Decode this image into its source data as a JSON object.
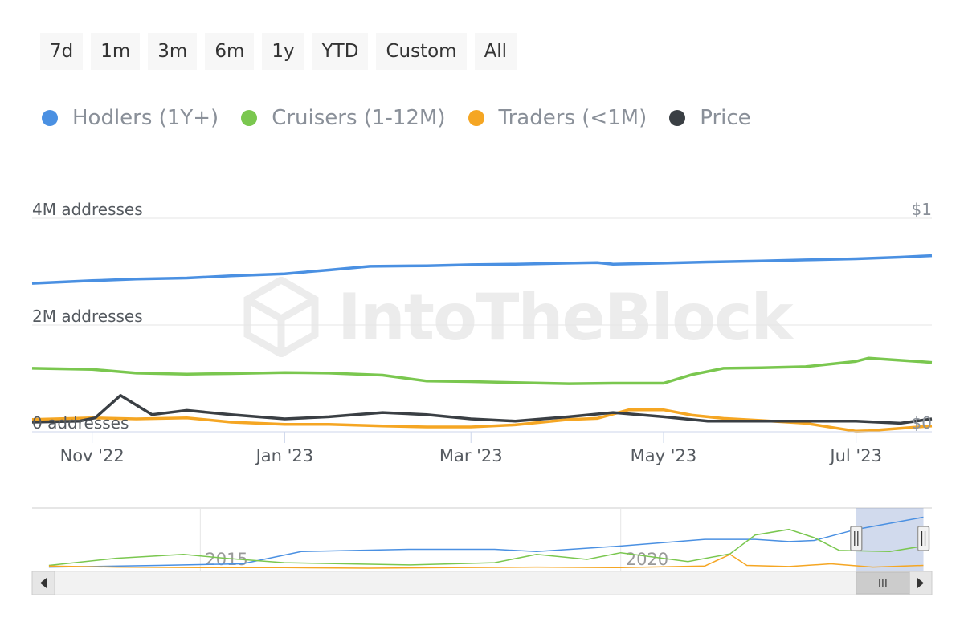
{
  "range_buttons": [
    "7d",
    "1m",
    "3m",
    "6m",
    "1y",
    "YTD",
    "Custom",
    "All"
  ],
  "legend": [
    {
      "label": "Hodlers (1Y+)",
      "color": "#4a90e2"
    },
    {
      "label": "Cruisers (1-12M)",
      "color": "#7ac74f"
    },
    {
      "label": "Traders (<1M)",
      "color": "#f5a623"
    },
    {
      "label": "Price",
      "color": "#3a3f44"
    }
  ],
  "watermark": "IntoTheBlock",
  "chart_data": {
    "type": "line",
    "y_axis_left": {
      "ticks": [
        "0 addresses",
        "2M addresses",
        "4M addresses"
      ],
      "range": [
        0,
        4000000
      ]
    },
    "y_axis_right": {
      "ticks": [
        "$0",
        "$1"
      ],
      "range": [
        0,
        1
      ]
    },
    "x_ticks": [
      "Nov '22",
      "Jan '23",
      "Mar '23",
      "May '23",
      "Jul '23"
    ],
    "x_range": [
      "2022-10-13",
      "2023-07-25"
    ],
    "series": [
      {
        "name": "Hodlers (1Y+)",
        "axis": "left",
        "color": "#4a90e2",
        "x": [
          "2022-10-13",
          "2022-11-01",
          "2022-11-15",
          "2022-12-01",
          "2022-12-15",
          "2023-01-01",
          "2023-01-15",
          "2023-01-28",
          "2023-02-15",
          "2023-03-01",
          "2023-03-15",
          "2023-04-01",
          "2023-04-10",
          "2023-04-15",
          "2023-05-01",
          "2023-05-15",
          "2023-06-01",
          "2023-06-15",
          "2023-07-01",
          "2023-07-15",
          "2023-07-25"
        ],
        "values": [
          2780000,
          2830000,
          2860000,
          2880000,
          2920000,
          2960000,
          3030000,
          3100000,
          3110000,
          3130000,
          3140000,
          3160000,
          3170000,
          3140000,
          3160000,
          3180000,
          3200000,
          3220000,
          3240000,
          3270000,
          3300000
        ]
      },
      {
        "name": "Cruisers (1-12M)",
        "axis": "left",
        "color": "#7ac74f",
        "x": [
          "2022-10-13",
          "2022-11-01",
          "2022-11-15",
          "2022-12-01",
          "2022-12-15",
          "2023-01-01",
          "2023-01-15",
          "2023-02-01",
          "2023-02-15",
          "2023-03-01",
          "2023-03-15",
          "2023-04-01",
          "2023-04-15",
          "2023-05-01",
          "2023-05-10",
          "2023-05-20",
          "2023-06-01",
          "2023-06-15",
          "2023-07-01",
          "2023-07-05",
          "2023-07-25"
        ],
        "values": [
          1190000,
          1170000,
          1100000,
          1080000,
          1090000,
          1110000,
          1100000,
          1060000,
          950000,
          940000,
          920000,
          900000,
          910000,
          910000,
          1070000,
          1190000,
          1200000,
          1220000,
          1320000,
          1380000,
          1300000
        ]
      },
      {
        "name": "Traders (<1M)",
        "axis": "left",
        "color": "#f5a623",
        "x": [
          "2022-10-13",
          "2022-11-01",
          "2022-11-15",
          "2022-12-01",
          "2022-12-15",
          "2023-01-01",
          "2023-01-15",
          "2023-02-01",
          "2023-02-15",
          "2023-03-01",
          "2023-03-15",
          "2023-04-01",
          "2023-04-10",
          "2023-04-20",
          "2023-05-01",
          "2023-05-10",
          "2023-05-20",
          "2023-06-01",
          "2023-06-15",
          "2023-07-01",
          "2023-07-05",
          "2023-07-25"
        ],
        "values": [
          230000,
          260000,
          240000,
          260000,
          180000,
          140000,
          140000,
          110000,
          90000,
          90000,
          130000,
          230000,
          250000,
          410000,
          410000,
          310000,
          250000,
          210000,
          160000,
          10000,
          20000,
          110000
        ]
      },
      {
        "name": "Price",
        "axis": "right",
        "color": "#3a3f44",
        "x": [
          "2022-10-13",
          "2022-10-28",
          "2022-11-02",
          "2022-11-10",
          "2022-11-20",
          "2022-12-01",
          "2022-12-15",
          "2023-01-01",
          "2023-01-15",
          "2023-02-01",
          "2023-02-15",
          "2023-03-01",
          "2023-03-15",
          "2023-04-01",
          "2023-04-15",
          "2023-05-01",
          "2023-05-15",
          "2023-06-01",
          "2023-06-15",
          "2023-07-01",
          "2023-07-15",
          "2023-07-25"
        ],
        "values": [
          0.045,
          0.05,
          0.065,
          0.17,
          0.08,
          0.1,
          0.08,
          0.06,
          0.07,
          0.09,
          0.08,
          0.06,
          0.05,
          0.07,
          0.09,
          0.07,
          0.05,
          0.05,
          0.05,
          0.05,
          0.04,
          0.06
        ]
      }
    ]
  },
  "navigator": {
    "x_labels": [
      "2015",
      "2020"
    ],
    "series": [
      {
        "name": "Hodlers (1Y+)",
        "color": "#4a90e2",
        "x": [
          2013.2,
          2014.5,
          2015.5,
          2016.2,
          2017.5,
          2018.5,
          2019.0,
          2020.0,
          2021.0,
          2021.6,
          2022.0,
          2022.3,
          2022.8,
          2023.6
        ],
        "values": [
          0.02,
          0.05,
          0.08,
          0.3,
          0.34,
          0.34,
          0.3,
          0.4,
          0.52,
          0.52,
          0.48,
          0.5,
          0.7,
          0.92
        ]
      },
      {
        "name": "Cruisers (1-12M)",
        "color": "#7ac74f",
        "x": [
          2013.2,
          2014.0,
          2014.8,
          2015.3,
          2016.0,
          2017.5,
          2018.5,
          2019.0,
          2019.6,
          2020.0,
          2020.8,
          2021.3,
          2021.6,
          2022.0,
          2022.3,
          2022.6,
          2023.2,
          2023.6
        ],
        "values": [
          0.05,
          0.18,
          0.25,
          0.18,
          0.1,
          0.06,
          0.1,
          0.25,
          0.16,
          0.28,
          0.12,
          0.26,
          0.6,
          0.7,
          0.55,
          0.32,
          0.3,
          0.4
        ]
      },
      {
        "name": "Traders (<1M)",
        "color": "#f5a623",
        "x": [
          2013.2,
          2014.0,
          2015.0,
          2016.0,
          2017.0,
          2018.0,
          2019.0,
          2020.0,
          2021.0,
          2021.3,
          2021.5,
          2022.0,
          2022.5,
          2023.0,
          2023.6
        ],
        "values": [
          0.04,
          0.02,
          0.01,
          0.01,
          0.0,
          0.01,
          0.02,
          0.01,
          0.04,
          0.25,
          0.05,
          0.03,
          0.08,
          0.02,
          0.05
        ]
      }
    ],
    "x_range": [
      2013.0,
      2023.7
    ],
    "selection": [
      2022.8,
      2023.6
    ]
  }
}
